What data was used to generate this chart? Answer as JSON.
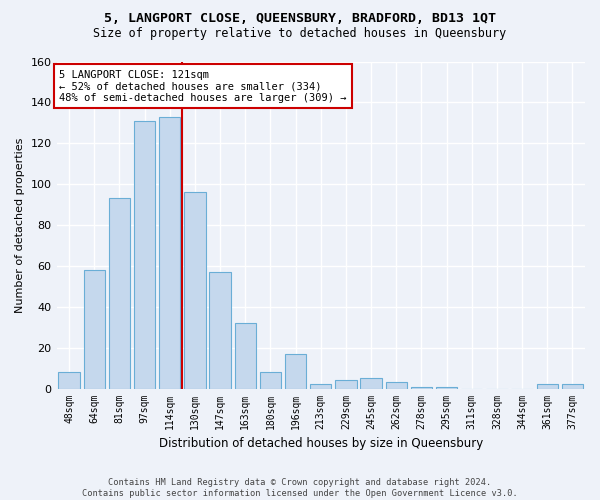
{
  "title1": "5, LANGPORT CLOSE, QUEENSBURY, BRADFORD, BD13 1QT",
  "title2": "Size of property relative to detached houses in Queensbury",
  "xlabel": "Distribution of detached houses by size in Queensbury",
  "ylabel": "Number of detached properties",
  "bar_color": "#c5d8ed",
  "bar_edge_color": "#6aaed6",
  "categories": [
    "48sqm",
    "64sqm",
    "81sqm",
    "97sqm",
    "114sqm",
    "130sqm",
    "147sqm",
    "163sqm",
    "180sqm",
    "196sqm",
    "213sqm",
    "229sqm",
    "245sqm",
    "262sqm",
    "278sqm",
    "295sqm",
    "311sqm",
    "328sqm",
    "344sqm",
    "361sqm",
    "377sqm"
  ],
  "values": [
    8,
    58,
    93,
    131,
    133,
    96,
    57,
    32,
    8,
    17,
    2,
    4,
    5,
    3,
    1,
    1,
    0,
    0,
    0,
    2,
    2
  ],
  "ylim": [
    0,
    160
  ],
  "yticks": [
    0,
    20,
    40,
    60,
    80,
    100,
    120,
    140,
    160
  ],
  "annotation_line1": "5 LANGPORT CLOSE: 121sqm",
  "annotation_line2": "← 52% of detached houses are smaller (334)",
  "annotation_line3": "48% of semi-detached houses are larger (309) →",
  "footer1": "Contains HM Land Registry data © Crown copyright and database right 2024.",
  "footer2": "Contains public sector information licensed under the Open Government Licence v3.0.",
  "bg_color": "#eef2f9",
  "grid_color": "#ffffff",
  "annotation_box_color": "#ffffff",
  "annotation_box_edge": "#cc0000",
  "vline_color": "#cc0000",
  "vline_x": 4.5
}
